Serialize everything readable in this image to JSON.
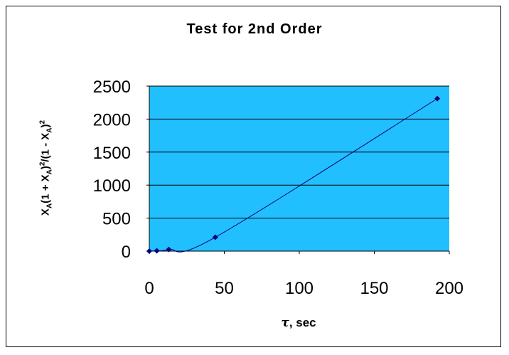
{
  "chart_data": {
    "type": "scatter",
    "title": "Test for 2nd Order",
    "xlabel": "τ, sec",
    "ylabel": "XA(1 + XA)2/(1 - XA)2",
    "xlim": [
      0,
      200
    ],
    "ylim": [
      0,
      2500
    ],
    "x_ticks": [
      "0",
      "50",
      "100",
      "150",
      "200"
    ],
    "y_ticks": [
      "0",
      "500",
      "1000",
      "1500",
      "2000",
      "2500"
    ],
    "grid": "horizontal",
    "plot_background": "#22BFFF",
    "series": [
      {
        "color": "#000080",
        "marker": "diamond",
        "smoothed_line": true,
        "points": [
          {
            "x": 0,
            "y": 0
          },
          {
            "x": 5,
            "y": 5
          },
          {
            "x": 13,
            "y": 25
          },
          {
            "x": 44,
            "y": 210
          },
          {
            "x": 192,
            "y": 2310
          }
        ]
      }
    ]
  }
}
